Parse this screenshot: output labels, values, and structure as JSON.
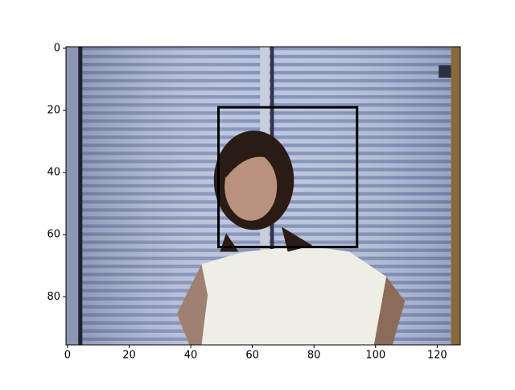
{
  "chart_data": {
    "type": "image",
    "xlim": [
      -0.5,
      127.5
    ],
    "ylim": [
      95.5,
      -0.5
    ],
    "xticks": [
      0,
      20,
      40,
      60,
      80,
      100,
      120
    ],
    "yticks": [
      0,
      20,
      40,
      60,
      80
    ],
    "box": {
      "x": 49,
      "y": 19,
      "width": 45,
      "height": 45,
      "color": "#000000"
    }
  }
}
